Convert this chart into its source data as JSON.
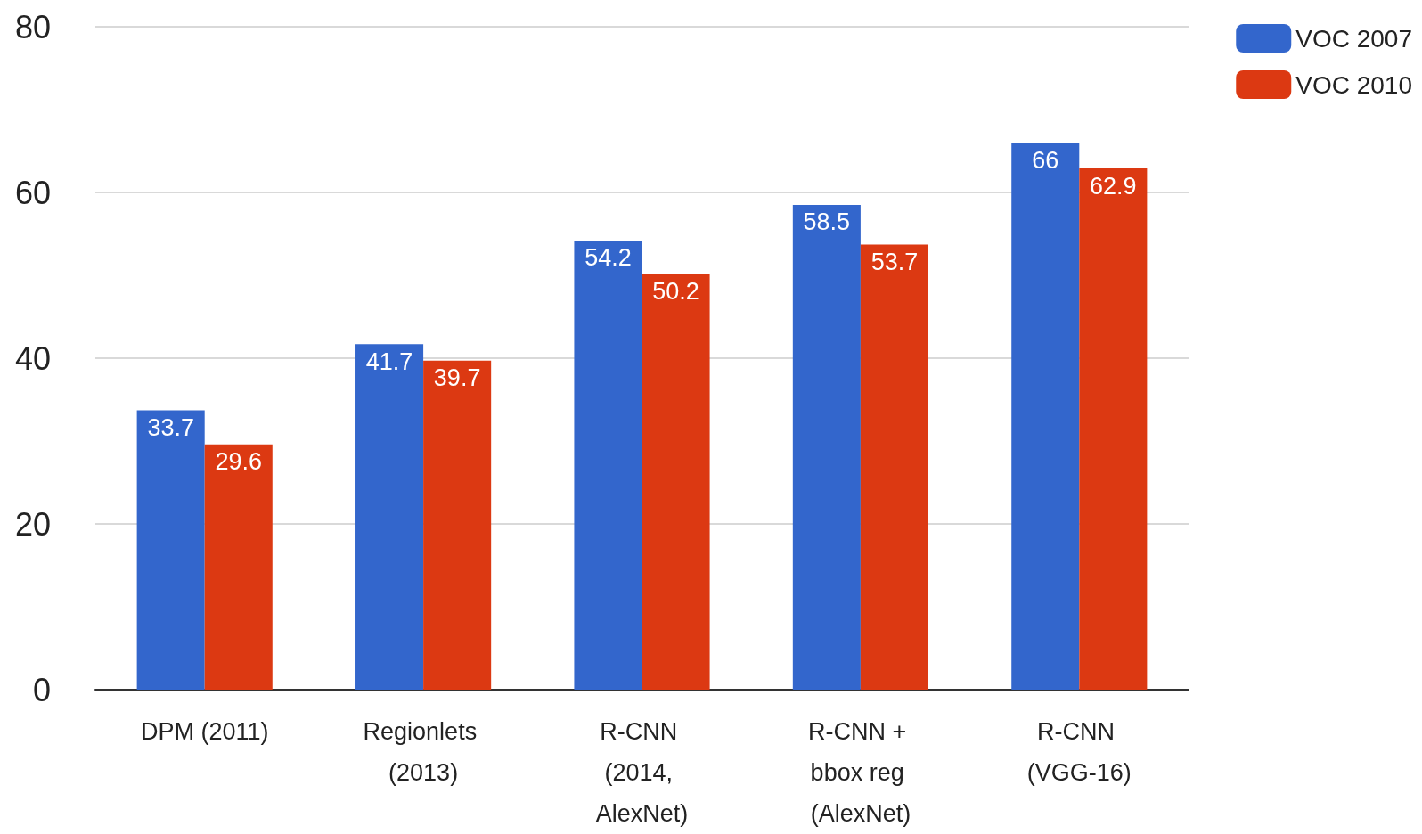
{
  "chart_data": {
    "type": "bar",
    "categories": [
      "DPM (2011)",
      "Regionlets (2013)",
      "R-CNN (2014, AlexNet)",
      "R-CNN + bbox reg (AlexNet)",
      "R-CNN (VGG-16)"
    ],
    "series": [
      {
        "name": "VOC 2007",
        "color": "#3366cc",
        "values": [
          33.7,
          41.7,
          54.2,
          58.5,
          66
        ]
      },
      {
        "name": "VOC 2010",
        "color": "#dc3912",
        "values": [
          29.6,
          39.7,
          50.2,
          53.7,
          62.9
        ]
      }
    ],
    "ylim": [
      0,
      80
    ],
    "yticks": [
      0,
      20,
      40,
      60,
      80
    ],
    "grid": "y",
    "legend": "top right",
    "data_labels": true
  }
}
